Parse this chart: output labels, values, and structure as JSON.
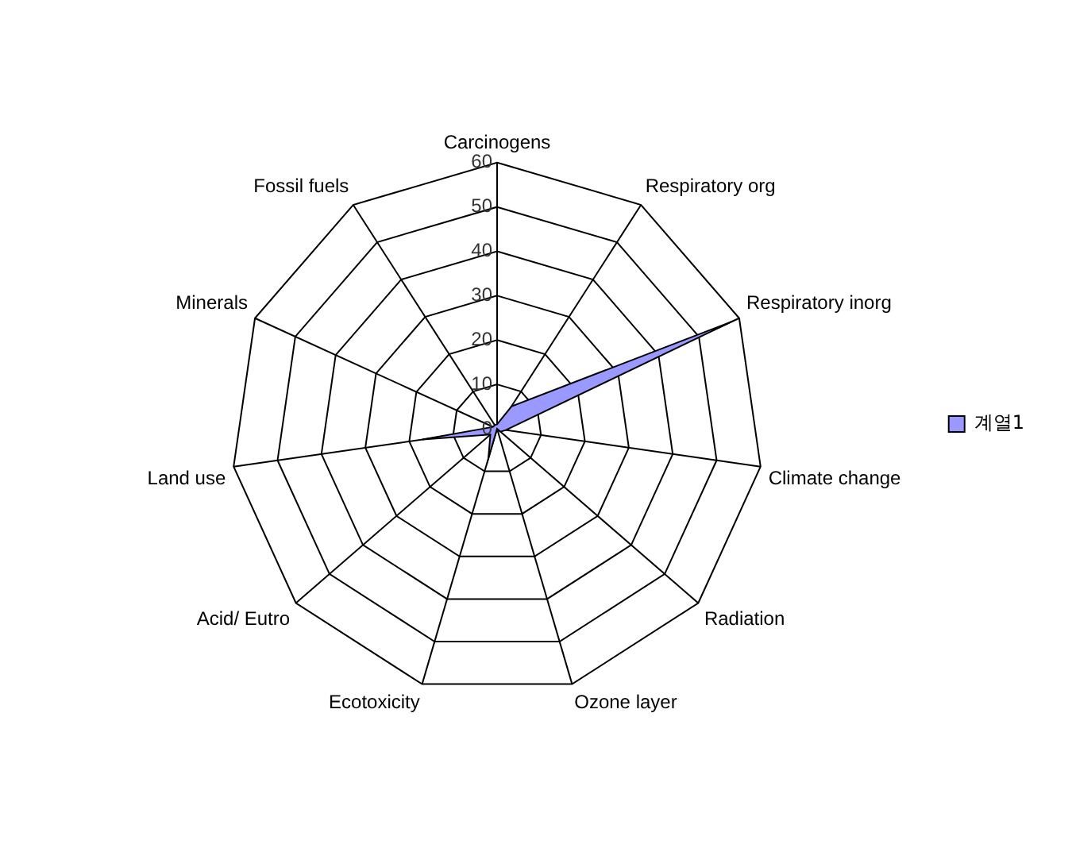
{
  "chart_data": {
    "type": "radar",
    "categories": [
      "Carcinogens",
      "Respiratory org",
      "Respiratory inorg",
      "Climate change",
      "Radiation",
      "Ozone layer",
      "Ecotoxicity",
      "Acid/ Eutro",
      "Land use",
      "Minerals",
      "Fossil fuels"
    ],
    "series": [
      {
        "name": "계열1",
        "color": "#9999ff",
        "values": [
          1,
          6,
          58,
          2,
          1,
          0,
          7,
          2,
          17,
          1,
          1
        ]
      }
    ],
    "ylim": [
      0,
      60
    ],
    "yticks": [
      0,
      10,
      20,
      30,
      40,
      50,
      60
    ],
    "legend": "right",
    "grid": true
  }
}
